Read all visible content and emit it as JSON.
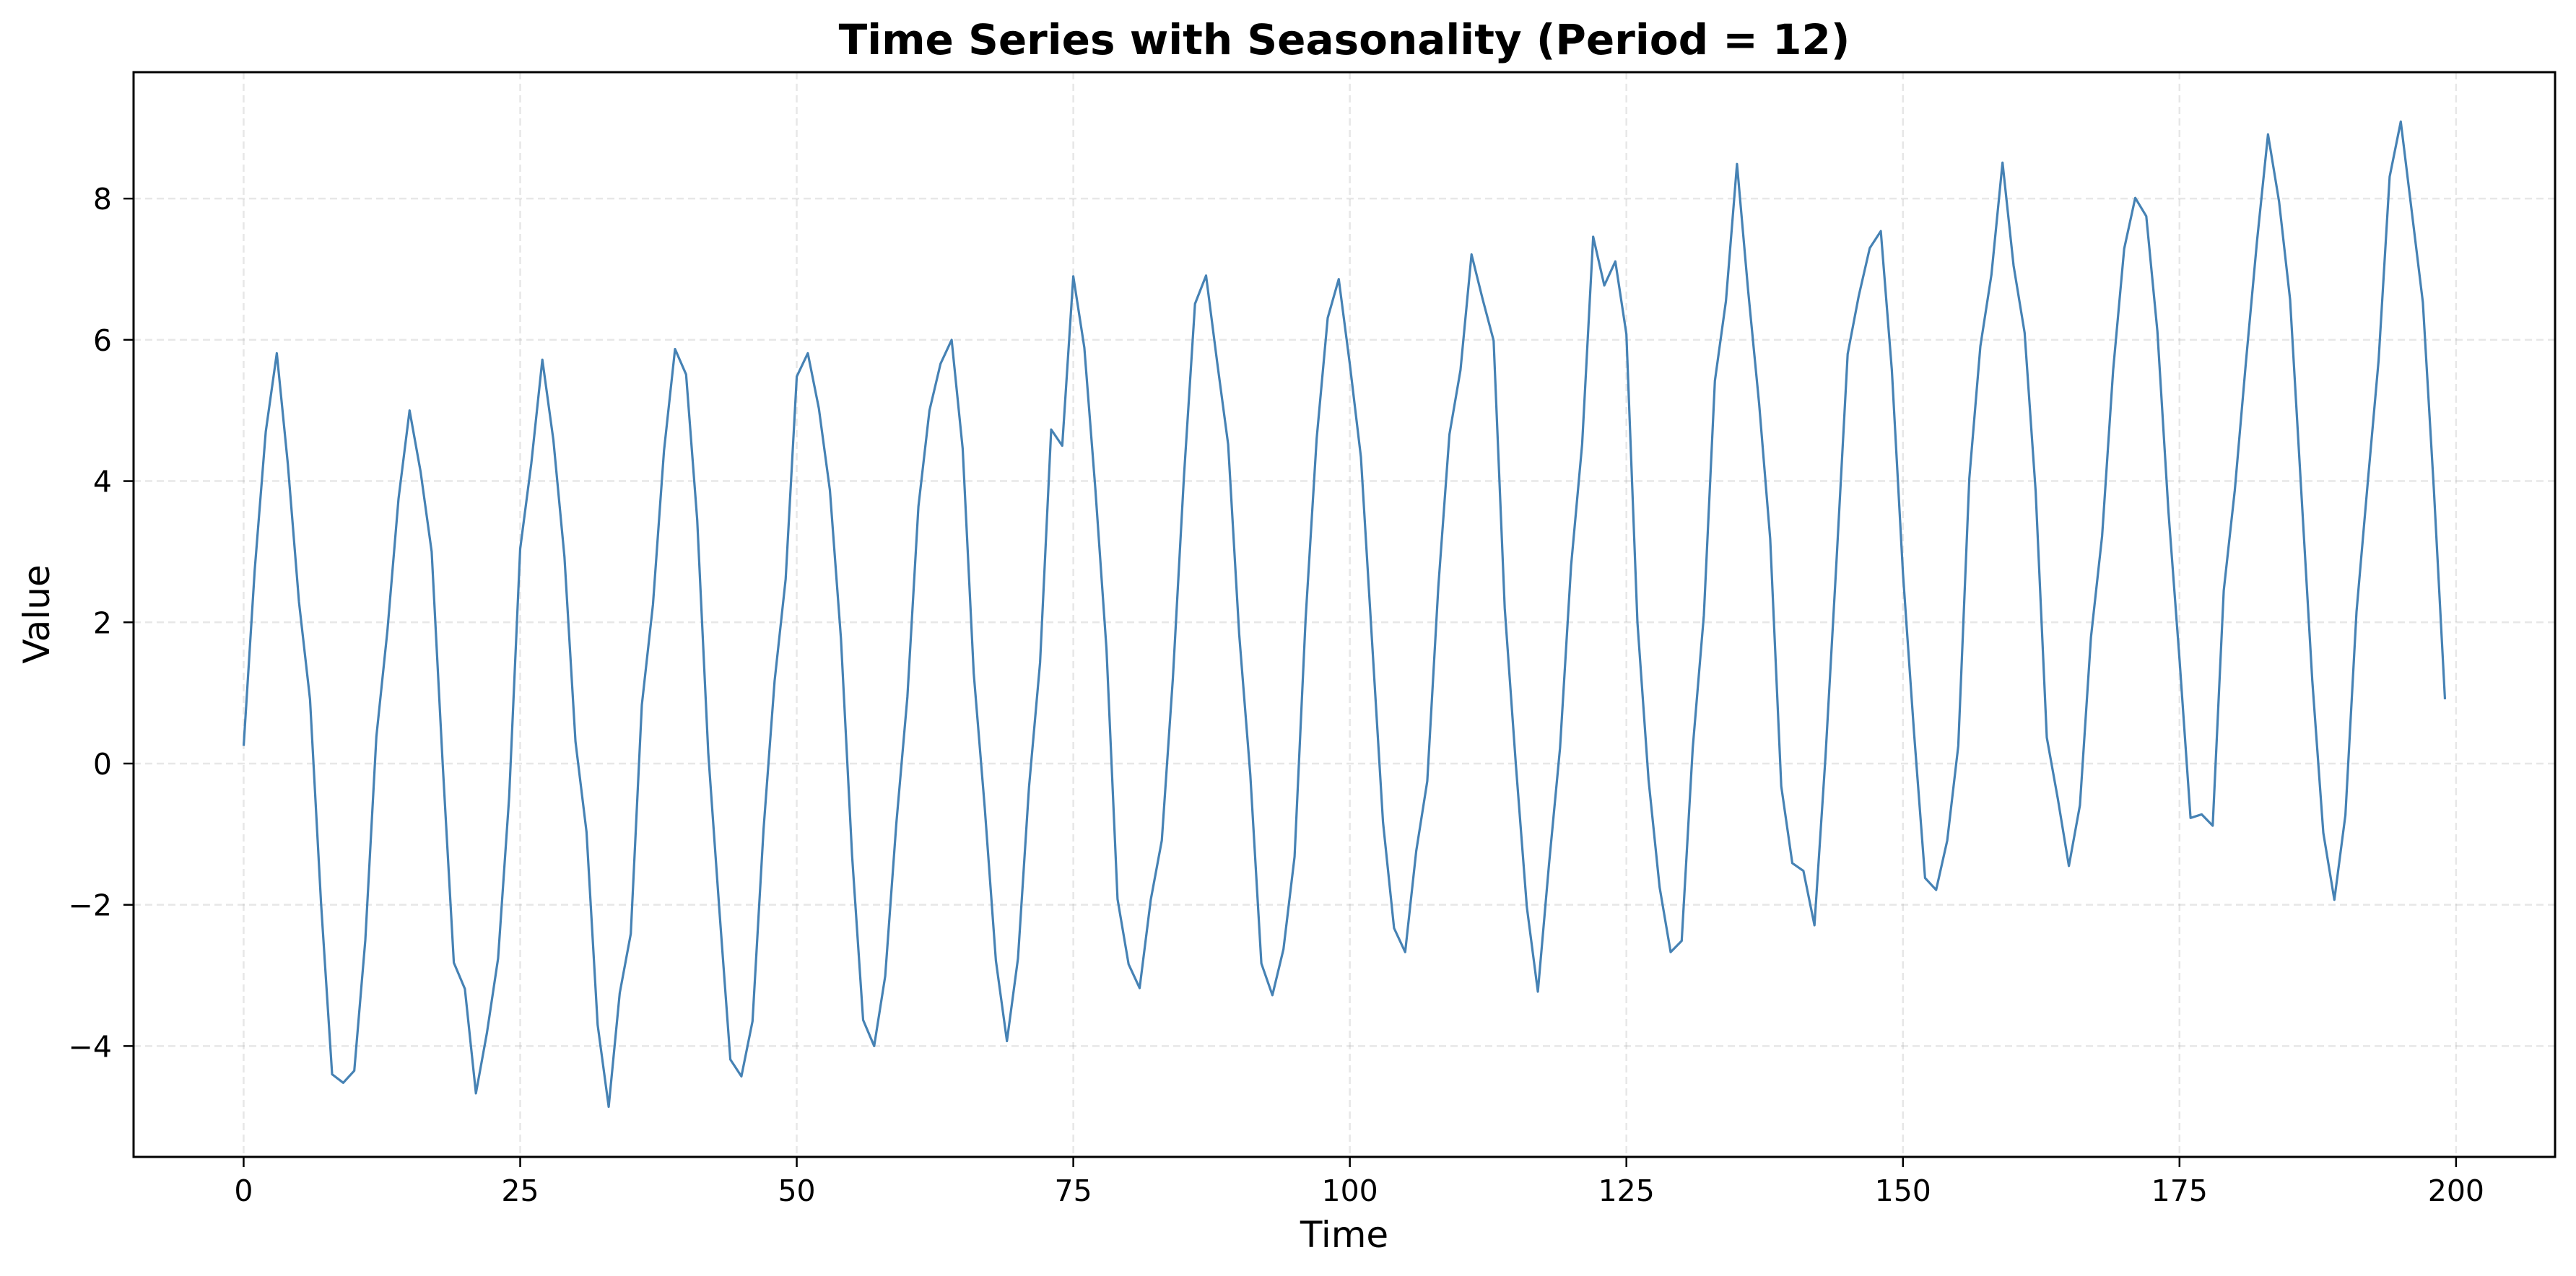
{
  "chart_data": {
    "type": "line",
    "title": "Time Series with Seasonality (Period = 12)",
    "xlabel": "Time",
    "ylabel": "Value",
    "xlim": [
      -9.95,
      208.95
    ],
    "ylim": [
      -5.57,
      9.79
    ],
    "xticks": [
      0,
      25,
      50,
      75,
      100,
      125,
      150,
      175,
      200
    ],
    "yticks": [
      -4,
      -2,
      0,
      2,
      4,
      6,
      8
    ],
    "xtick_labels": [
      "0",
      "25",
      "50",
      "75",
      "100",
      "125",
      "150",
      "175",
      "200"
    ],
    "ytick_labels": [
      "−4",
      "−2",
      "0",
      "2",
      "4",
      "6",
      "8"
    ],
    "grid": true,
    "grid_style": "dashed",
    "legend": null,
    "series": [
      {
        "name": "Value",
        "color": "#4682b4",
        "x_start": 0,
        "x_step": 1,
        "values": [
          0.25,
          2.74,
          4.7,
          5.81,
          4.24,
          2.29,
          0.91,
          -1.98,
          -4.4,
          -4.52,
          -4.35,
          -2.5,
          0.38,
          1.88,
          3.75,
          5.0,
          4.13,
          3.0,
          -0.03,
          -2.82,
          -3.19,
          -4.67,
          -3.81,
          -2.76,
          -0.48,
          3.04,
          4.24,
          5.72,
          4.58,
          2.93,
          0.31,
          -0.97,
          -3.7,
          -4.86,
          -3.25,
          -2.41,
          0.83,
          2.25,
          4.43,
          5.87,
          5.51,
          3.45,
          0.15,
          -2.06,
          -4.19,
          -4.43,
          -3.65,
          -0.93,
          1.17,
          2.61,
          5.48,
          5.81,
          5.03,
          3.87,
          1.77,
          -1.3,
          -3.63,
          -4.0,
          -3.01,
          -0.85,
          0.94,
          3.64,
          5.0,
          5.66,
          6.0,
          4.46,
          1.28,
          -0.63,
          -2.79,
          -3.93,
          -2.76,
          -0.33,
          1.43,
          4.73,
          4.5,
          6.9,
          5.89,
          3.87,
          1.62,
          -1.92,
          -2.84,
          -3.18,
          -1.93,
          -1.09,
          1.2,
          4.05,
          6.51,
          6.91,
          5.69,
          4.52,
          1.83,
          -0.16,
          -2.83,
          -3.28,
          -2.63,
          -1.32,
          2.05,
          4.6,
          6.31,
          6.86,
          5.65,
          4.34,
          1.75,
          -0.83,
          -2.33,
          -2.67,
          -1.24,
          -0.25,
          2.5,
          4.66,
          5.57,
          7.21,
          6.58,
          5.99,
          2.2,
          0.0,
          -2.03,
          -3.23,
          -1.43,
          0.22,
          2.8,
          4.52,
          7.46,
          6.77,
          7.11,
          6.08,
          2.0,
          -0.23,
          -1.75,
          -2.67,
          -2.51,
          0.22,
          2.1,
          5.42,
          6.55,
          8.49,
          6.7,
          5.09,
          3.18,
          -0.32,
          -1.41,
          -1.52,
          -2.29,
          0.1,
          2.88,
          5.8,
          6.62,
          7.3,
          7.54,
          5.57,
          2.69,
          0.44,
          -1.62,
          -1.79,
          -1.09,
          0.25,
          4.04,
          5.91,
          6.92,
          8.51,
          7.05,
          6.1,
          3.85,
          0.37,
          -0.5,
          -1.45,
          -0.59,
          1.79,
          3.22,
          5.57,
          7.29,
          8.01,
          7.75,
          6.12,
          3.57,
          1.48,
          -0.77,
          -0.72,
          -0.88,
          2.45,
          3.87,
          5.67,
          7.39,
          8.91,
          7.96,
          6.57,
          3.87,
          1.18,
          -0.98,
          -1.93,
          -0.73,
          2.15,
          3.95,
          5.71,
          8.31,
          9.09,
          7.81,
          6.53,
          3.87,
          0.91
        ]
      }
    ]
  },
  "figure": {
    "title": "Time Series with Seasonality (Period = 12)",
    "xlabel": "Time",
    "ylabel": "Value"
  }
}
